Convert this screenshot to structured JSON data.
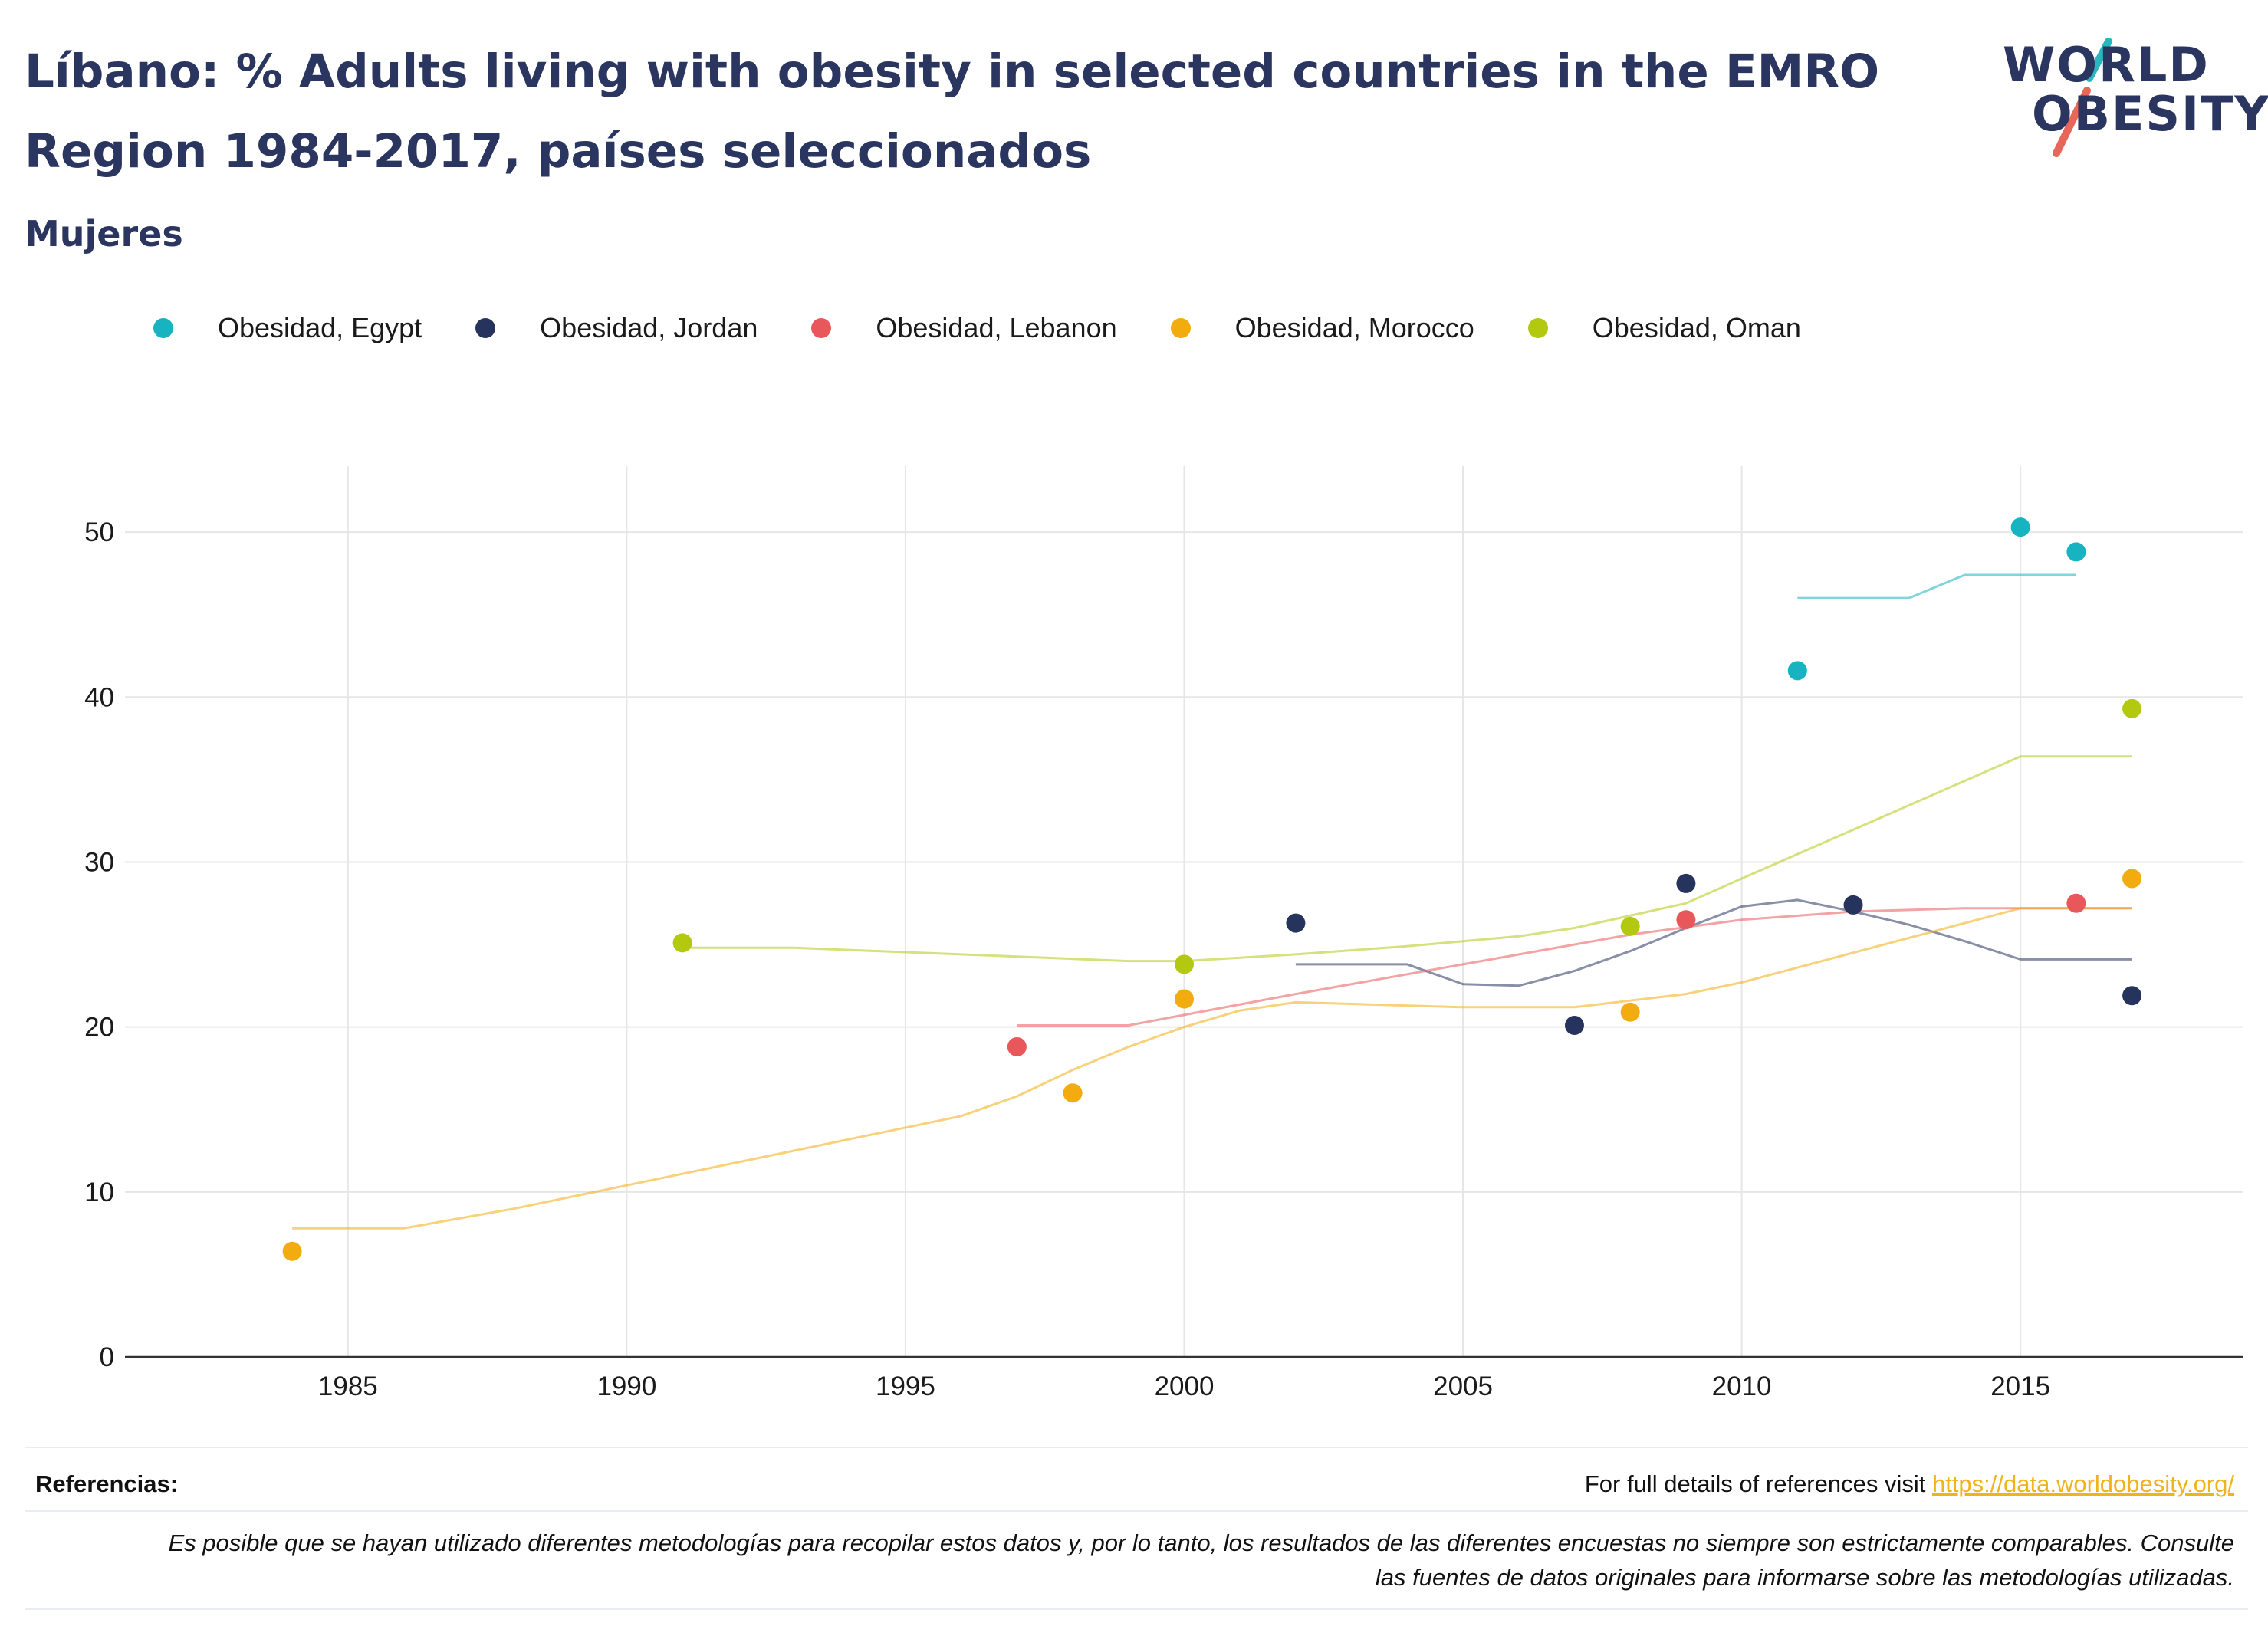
{
  "header": {
    "title": "Líbano: % Adults living with obesity in selected countries in the EMRO Region 1984-2017, países seleccionados",
    "subtitle": "Mujeres"
  },
  "logo": {
    "line1": "WORLD",
    "line2": "OBESITY"
  },
  "colors": {
    "egypt": "#17b3c1",
    "jordan": "#26335c",
    "lebanon": "#e8585a",
    "morocco": "#f2ac0f",
    "oman": "#b3c910",
    "grid": "#e6e6e6",
    "axis": "#333333"
  },
  "chart_data": {
    "type": "scatter",
    "title": "",
    "xlabel": "",
    "ylabel": "",
    "xlim": [
      1981,
      2019
    ],
    "ylim": [
      0,
      54
    ],
    "x_ticks": [
      1985,
      1990,
      1995,
      2000,
      2005,
      2010,
      2015
    ],
    "y_ticks": [
      0,
      10,
      20,
      30,
      40,
      50
    ],
    "grid": true,
    "legend_position": "top",
    "series": [
      {
        "name": "Obesidad, Egypt",
        "color_key": "egypt",
        "points": [
          [
            2011,
            41.6
          ],
          [
            2015,
            50.3
          ],
          [
            2016,
            48.8
          ]
        ],
        "trend": [
          [
            2011,
            46.0
          ],
          [
            2013,
            46.0
          ],
          [
            2014,
            47.4
          ],
          [
            2016,
            47.4
          ]
        ]
      },
      {
        "name": "Obesidad, Jordan",
        "color_key": "jordan",
        "points": [
          [
            2002,
            26.3
          ],
          [
            2007,
            20.1
          ],
          [
            2009,
            28.7
          ],
          [
            2012,
            27.4
          ],
          [
            2017,
            21.9
          ]
        ],
        "trend": [
          [
            2002,
            23.8
          ],
          [
            2004,
            23.8
          ],
          [
            2005,
            22.6
          ],
          [
            2006,
            22.5
          ],
          [
            2007,
            23.4
          ],
          [
            2008,
            24.6
          ],
          [
            2009,
            26.0
          ],
          [
            2010,
            27.3
          ],
          [
            2011,
            27.7
          ],
          [
            2012,
            27.0
          ],
          [
            2013,
            26.2
          ],
          [
            2014,
            25.2
          ],
          [
            2015,
            24.1
          ],
          [
            2017,
            24.1
          ]
        ]
      },
      {
        "name": "Obesidad, Lebanon",
        "color_key": "lebanon",
        "points": [
          [
            1997,
            18.8
          ],
          [
            2009,
            26.5
          ],
          [
            2016,
            27.5
          ]
        ],
        "trend": [
          [
            1997,
            20.1
          ],
          [
            1999,
            20.1
          ],
          [
            2002,
            22.0
          ],
          [
            2005,
            23.8
          ],
          [
            2008,
            25.6
          ],
          [
            2010,
            26.5
          ],
          [
            2012,
            27.0
          ],
          [
            2014,
            27.2
          ],
          [
            2017,
            27.2
          ]
        ]
      },
      {
        "name": "Obesidad, Morocco",
        "color_key": "morocco",
        "points": [
          [
            1984,
            6.4
          ],
          [
            1998,
            16.0
          ],
          [
            2000,
            21.7
          ],
          [
            2008,
            20.9
          ],
          [
            2017,
            29.0
          ]
        ],
        "trend": [
          [
            1984,
            7.8
          ],
          [
            1986,
            7.8
          ],
          [
            1988,
            9.0
          ],
          [
            1990,
            10.4
          ],
          [
            1993,
            12.5
          ],
          [
            1996,
            14.6
          ],
          [
            1997,
            15.8
          ],
          [
            1998,
            17.4
          ],
          [
            1999,
            18.8
          ],
          [
            2000,
            20.0
          ],
          [
            2001,
            21.0
          ],
          [
            2002,
            21.5
          ],
          [
            2005,
            21.2
          ],
          [
            2007,
            21.2
          ],
          [
            2009,
            22.0
          ],
          [
            2010,
            22.7
          ],
          [
            2015,
            27.2
          ],
          [
            2017,
            27.2
          ]
        ]
      },
      {
        "name": "Obesidad, Oman",
        "color_key": "oman",
        "points": [
          [
            1991,
            25.1
          ],
          [
            2000,
            23.8
          ],
          [
            2008,
            26.1
          ],
          [
            2017,
            39.3
          ]
        ],
        "trend": [
          [
            1991,
            24.8
          ],
          [
            1993,
            24.8
          ],
          [
            1996,
            24.4
          ],
          [
            1999,
            24.0
          ],
          [
            2000,
            24.0
          ],
          [
            2002,
            24.4
          ],
          [
            2004,
            24.9
          ],
          [
            2006,
            25.5
          ],
          [
            2007,
            26.0
          ],
          [
            2009,
            27.5
          ],
          [
            2010,
            29.0
          ],
          [
            2015,
            36.4
          ],
          [
            2017,
            36.4
          ]
        ]
      }
    ]
  },
  "footer": {
    "references_label": "Referencias:",
    "references_text": "For full details of references visit ",
    "references_link": "https://data.worldobesity.org/",
    "note": "Es posible que se hayan utilizado diferentes metodologías para recopilar estos datos y, por lo tanto, los resultados de las diferentes encuestas no siempre son estrictamente comparables. Consulte las fuentes de datos originales para informarse sobre las metodologías utilizadas."
  }
}
